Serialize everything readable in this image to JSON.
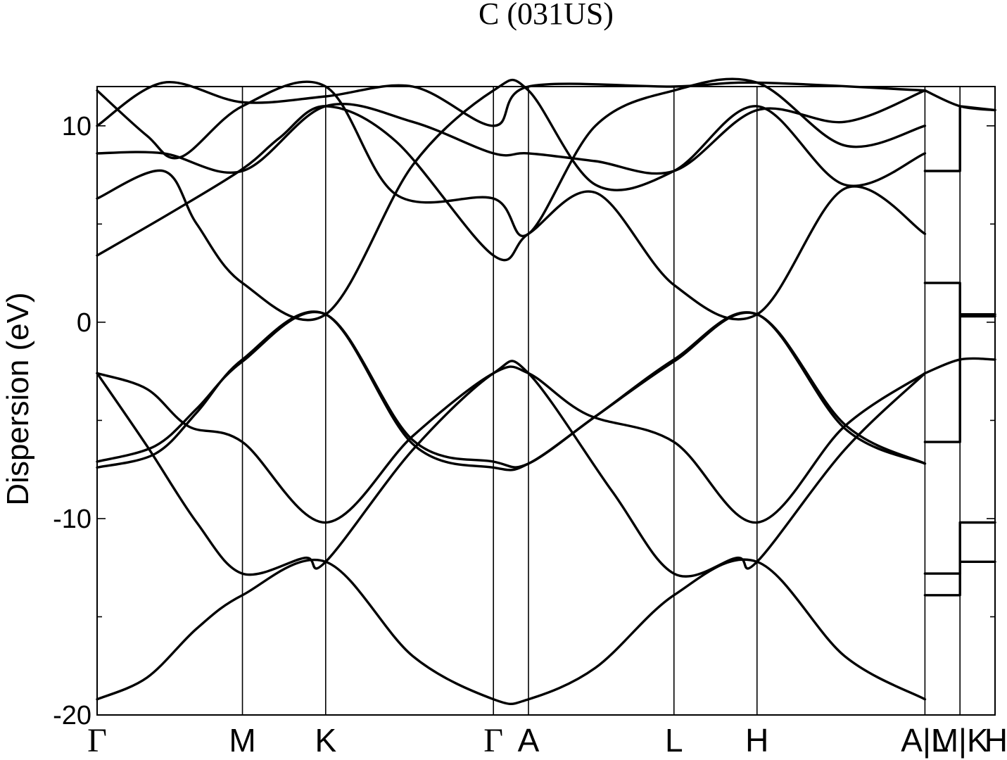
{
  "chart_data": {
    "type": "line",
    "title": "C (031US)",
    "ylabel": "Dispersion (eV)",
    "xlabel": "",
    "ylim": [
      -20,
      12
    ],
    "yticks": [
      {
        "value": 10,
        "label": "10"
      },
      {
        "value": 0,
        "label": "0"
      },
      {
        "value": -10,
        "label": "-10"
      },
      {
        "value": -20,
        "label": "-20"
      }
    ],
    "minor_yticks": [
      5,
      -5,
      -15
    ],
    "kpath": [
      {
        "pos": 0.0,
        "label": "Γ"
      },
      {
        "pos": 0.875,
        "label": "M"
      },
      {
        "pos": 1.376,
        "label": "K"
      },
      {
        "pos": 2.386,
        "label": "Γ"
      },
      {
        "pos": 2.597,
        "label": "A"
      },
      {
        "pos": 3.473,
        "label": "L"
      },
      {
        "pos": 3.973,
        "label": "H"
      },
      {
        "pos": 4.984,
        "label": "A|L"
      },
      {
        "pos": 5.195,
        "label": "M|K"
      },
      {
        "pos": 5.406,
        "label": "H"
      }
    ],
    "grid": false,
    "series": [
      {
        "points": [
          [
            0,
            -19.2
          ],
          [
            0.3,
            -18.1
          ],
          [
            0.6,
            -15.6
          ],
          [
            0.875,
            -13.9
          ],
          [
            1.376,
            -12.2
          ],
          [
            1.9,
            -17.0
          ],
          [
            2.386,
            -19.2
          ],
          [
            2.597,
            -19.2
          ],
          [
            3.0,
            -17.6
          ],
          [
            3.473,
            -13.9
          ],
          [
            3.973,
            -12.2
          ],
          [
            4.5,
            -17.0
          ],
          [
            4.984,
            -19.2
          ]
        ]
      },
      {
        "points": [
          [
            0,
            -2.6
          ],
          [
            0.3,
            -6.3
          ],
          [
            0.6,
            -10.2
          ],
          [
            0.875,
            -12.8
          ],
          [
            1.25,
            -12.0
          ],
          [
            1.376,
            -12.2
          ],
          [
            1.9,
            -6.5
          ],
          [
            2.386,
            -2.6
          ],
          [
            2.597,
            -2.6
          ],
          [
            3.1,
            -8.6
          ],
          [
            3.473,
            -12.8
          ],
          [
            3.85,
            -12.0
          ],
          [
            3.973,
            -12.2
          ],
          [
            4.5,
            -6.5
          ],
          [
            4.984,
            -2.6
          ]
        ]
      },
      {
        "points": [
          [
            0,
            -2.6
          ],
          [
            0.3,
            -3.4
          ],
          [
            0.55,
            -5.3
          ],
          [
            0.875,
            -6.1
          ],
          [
            1.376,
            -10.2
          ],
          [
            1.9,
            -5.8
          ],
          [
            2.386,
            -2.6
          ],
          [
            2.597,
            -2.6
          ],
          [
            2.95,
            -4.7
          ],
          [
            3.473,
            -6.1
          ],
          [
            3.973,
            -10.2
          ],
          [
            4.5,
            -5.3
          ],
          [
            4.984,
            -2.6
          ]
        ]
      },
      {
        "points": [
          [
            0,
            -7.1
          ],
          [
            0.35,
            -6.3
          ],
          [
            0.6,
            -4.4
          ],
          [
            0.875,
            -2.0
          ],
          [
            1.376,
            0.4
          ],
          [
            1.9,
            -6.0
          ],
          [
            2.386,
            -7.1
          ],
          [
            2.597,
            -7.2
          ],
          [
            3.0,
            -4.8
          ],
          [
            3.473,
            -2.0
          ],
          [
            3.973,
            0.4
          ],
          [
            4.5,
            -5.2
          ],
          [
            4.984,
            -7.2
          ]
        ]
      },
      {
        "points": [
          [
            0,
            -7.4
          ],
          [
            0.35,
            -6.7
          ],
          [
            0.6,
            -4.6
          ],
          [
            0.875,
            -1.9
          ],
          [
            1.376,
            0.4
          ],
          [
            1.9,
            -6.2
          ],
          [
            2.386,
            -7.4
          ],
          [
            2.597,
            -7.2
          ],
          [
            3.0,
            -4.8
          ],
          [
            3.473,
            -1.9
          ],
          [
            3.973,
            0.4
          ],
          [
            4.5,
            -5.4
          ],
          [
            4.984,
            -7.2
          ]
        ]
      },
      {
        "points": [
          [
            0,
            3.4
          ],
          [
            0.45,
            5.6
          ],
          [
            0.875,
            7.8
          ],
          [
            1.1,
            9.4
          ],
          [
            1.376,
            11.0
          ],
          [
            1.8,
            9.2
          ],
          [
            2.386,
            3.4
          ],
          [
            2.597,
            4.5
          ],
          [
            3.0,
            6.6
          ],
          [
            3.473,
            1.9
          ],
          [
            3.973,
            0.4
          ],
          [
            4.5,
            6.8
          ],
          [
            4.984,
            4.5
          ]
        ]
      },
      {
        "points": [
          [
            0,
            6.3
          ],
          [
            0.4,
            7.7
          ],
          [
            0.6,
            5.0
          ],
          [
            0.875,
            2.0
          ],
          [
            1.376,
            0.4
          ],
          [
            1.9,
            8.0
          ],
          [
            2.386,
            11.8
          ],
          [
            2.597,
            11.8
          ],
          [
            3.0,
            7.0
          ],
          [
            3.473,
            7.7
          ],
          [
            3.973,
            11.0
          ],
          [
            4.5,
            7.0
          ],
          [
            4.984,
            8.6
          ]
        ]
      },
      {
        "points": [
          [
            0,
            8.6
          ],
          [
            0.4,
            8.6
          ],
          [
            0.875,
            7.7
          ],
          [
            1.376,
            11.0
          ],
          [
            1.9,
            10.2
          ],
          [
            2.386,
            8.6
          ],
          [
            2.597,
            8.6
          ],
          [
            3.0,
            8.2
          ],
          [
            3.473,
            7.7
          ],
          [
            3.973,
            10.8
          ],
          [
            4.5,
            10.2
          ],
          [
            4.984,
            11.8
          ]
        ]
      },
      {
        "points": [
          [
            0,
            11.8
          ],
          [
            0.3,
            9.5
          ],
          [
            0.5,
            8.4
          ],
          [
            0.875,
            11.0
          ],
          [
            1.376,
            12.0
          ],
          [
            1.8,
            6.5
          ],
          [
            2.386,
            6.3
          ],
          [
            2.597,
            4.5
          ],
          [
            3.0,
            10.0
          ],
          [
            3.473,
            11.8
          ],
          [
            3.973,
            12.2
          ],
          [
            4.5,
            9.0
          ],
          [
            4.984,
            10.0
          ]
        ]
      },
      {
        "points": [
          [
            0,
            10.0
          ],
          [
            0.4,
            12.2
          ],
          [
            0.875,
            11.2
          ],
          [
            1.376,
            11.5
          ],
          [
            1.9,
            12.0
          ],
          [
            2.386,
            10.0
          ],
          [
            2.597,
            12.0
          ],
          [
            3.473,
            12.0
          ],
          [
            3.973,
            12.2
          ],
          [
            4.984,
            11.8
          ]
        ]
      },
      {
        "points": [
          [
            4.984,
            -2.6
          ],
          [
            5.195,
            -1.9
          ],
          [
            5.406,
            -1.9
          ]
        ]
      },
      {
        "points": [
          [
            4.984,
            -13.9
          ],
          [
            5.195,
            -13.9
          ],
          [
            5.195,
            -12.2
          ],
          [
            5.406,
            -12.2
          ]
        ]
      },
      {
        "points": [
          [
            4.984,
            -12.8
          ],
          [
            5.195,
            -12.8
          ],
          [
            5.195,
            -10.2
          ],
          [
            5.406,
            -10.2
          ]
        ]
      },
      {
        "points": [
          [
            4.984,
            -6.1
          ],
          [
            5.195,
            -6.1
          ],
          [
            5.195,
            0.4
          ],
          [
            5.406,
            0.4
          ]
        ]
      },
      {
        "points": [
          [
            4.984,
            2.0
          ],
          [
            5.195,
            2.0
          ],
          [
            5.195,
            0.3
          ],
          [
            5.406,
            0.3
          ]
        ]
      },
      {
        "points": [
          [
            4.984,
            7.7
          ],
          [
            5.195,
            7.7
          ],
          [
            5.195,
            11.0
          ],
          [
            5.406,
            10.8
          ]
        ]
      },
      {
        "points": [
          [
            4.984,
            11.8
          ],
          [
            5.195,
            11.0
          ],
          [
            5.406,
            10.8
          ]
        ]
      }
    ]
  }
}
